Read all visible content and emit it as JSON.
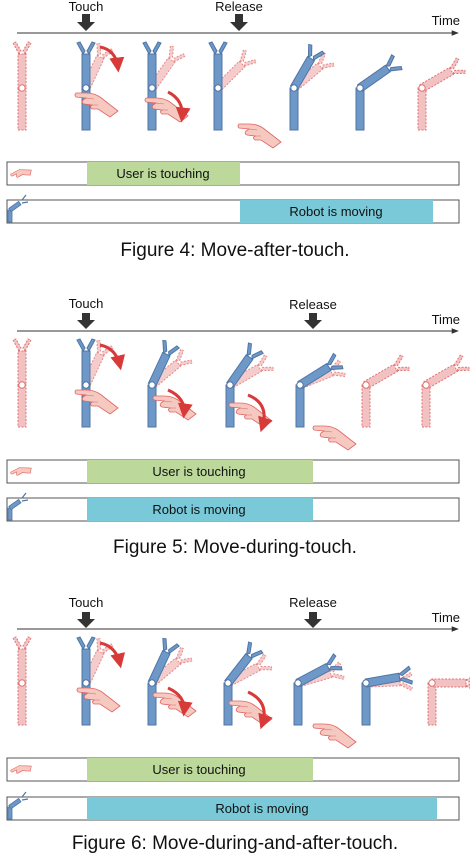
{
  "time_label": "Time",
  "touch_label": "Touch",
  "release_label": "Release",
  "user_bar_label": "User is touching",
  "robot_bar_label": "Robot is moving",
  "colors": {
    "user_bar": "#bcd99b",
    "robot_bar": "#79c9d8",
    "robot_solid": "#6d98c7",
    "robot_ghost": "#f1bcbc",
    "ghost_edge": "#e06464",
    "hand": "#f6c9c0",
    "arrow": "#d83a3a",
    "marker": "#333333"
  },
  "figures": [
    {
      "caption": "Figure 4: Move-after-touch."
    },
    {
      "caption": "Figure 5: Move-during-touch."
    },
    {
      "caption": "Figure 6: Move-during-and-after-touch."
    }
  ]
}
